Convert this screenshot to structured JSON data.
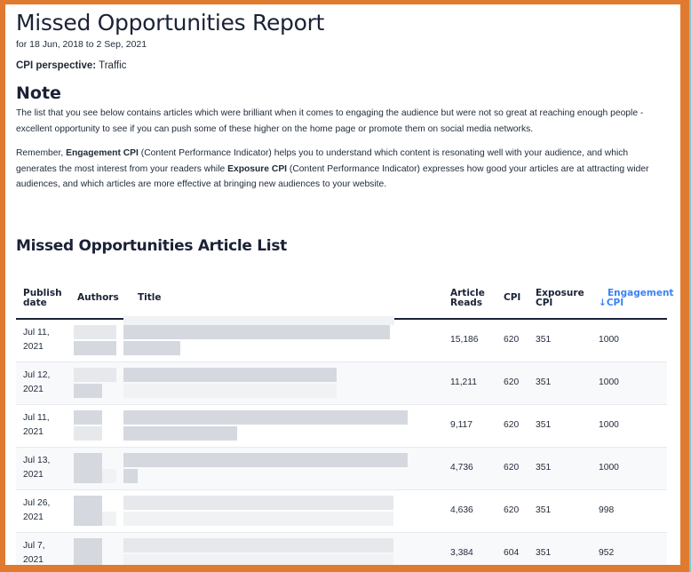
{
  "report": {
    "title": "Missed Opportunities Report",
    "date_range": "for 18 Jun, 2018 to 2 Sep, 2021",
    "perspective_label": "CPI perspective:",
    "perspective_value": "Traffic"
  },
  "note": {
    "title": "Note",
    "paragraph1": "The list that you see below contains articles which were brilliant when it comes to engaging the audience but were not so great at reaching enough people - excellent opportunity to see if you can push some of these higher on the home page or promote them on social media networks.",
    "paragraph2": {
      "part1": "Remember, ",
      "bold1": "Engagement CPI",
      "part2": " (Content Performance Indicator) helps you to understand which content is resonating well with your audience, and which generates the most interest from your readers while ",
      "bold2": "Exposure CPI",
      "part3": " (Content Performance Indicator) expresses how good your articles are at attracting wider audiences, and which articles are more effective at bringing new audiences to your website."
    }
  },
  "article_list": {
    "title": "Missed Opportunities Article List",
    "columns": {
      "publish_date": "Publish date",
      "authors": "Authors",
      "title": "Title",
      "article_reads": "Article Reads",
      "cpi": "CPI",
      "exposure_cpi": "Exposure CPI",
      "engagement_cpi": "Engagement CPI",
      "sort_indicator": "↓"
    },
    "sorted_column_color": "#3b82f6",
    "rows": [
      {
        "date_line1": "Jul 11,",
        "date_line2": "2021",
        "authors": "[redacted]",
        "title": "[redacted]",
        "reads": "15,186",
        "cpi": "620",
        "exposure": "351",
        "engagement": "1000"
      },
      {
        "date_line1": "Jul 12,",
        "date_line2": "2021",
        "authors": "[redacted]",
        "title": "[redacted]",
        "reads": "11,211",
        "cpi": "620",
        "exposure": "351",
        "engagement": "1000"
      },
      {
        "date_line1": "Jul 11,",
        "date_line2": "2021",
        "authors": "[redacted]",
        "title": "[redacted]",
        "reads": "9,117",
        "cpi": "620",
        "exposure": "351",
        "engagement": "1000"
      },
      {
        "date_line1": "Jul 13,",
        "date_line2": "2021",
        "authors": "[redacted]",
        "title": "[redacted]",
        "reads": "4,736",
        "cpi": "620",
        "exposure": "351",
        "engagement": "1000"
      },
      {
        "date_line1": "Jul 26,",
        "date_line2": "2021",
        "authors": "[redacted]",
        "title": "[redacted]",
        "reads": "4,636",
        "cpi": "620",
        "exposure": "351",
        "engagement": "998"
      },
      {
        "date_line1": "Jul 7,",
        "date_line2": "2021",
        "authors": "[redacted]",
        "title": "[redacted]",
        "reads": "3,384",
        "cpi": "604",
        "exposure": "351",
        "engagement": "952"
      }
    ]
  },
  "colors": {
    "frame_border": "#e07a2e",
    "heading_text": "#1b2236",
    "sorted_header": "#3b82f6",
    "stripe_row": "#f8f9fb"
  }
}
